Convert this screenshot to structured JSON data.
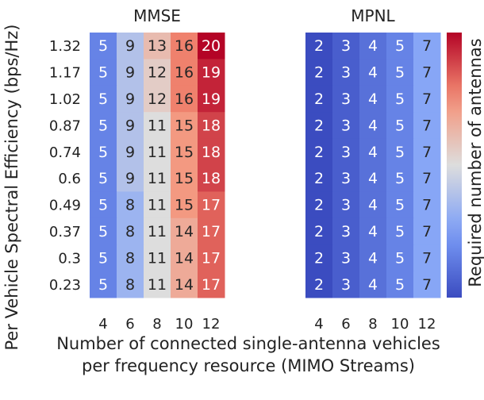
{
  "chart_data": {
    "type": "heatmap",
    "ylabel": "Per Vehicle Spectral Efficiency (bps/Hz)",
    "xlabel_line1": "Number of connected single-antenna vehicles",
    "xlabel_line2": "per frequency resource (MIMO Streams)",
    "colorbar_label": "Required number of antennas",
    "colormap": "coolwarm",
    "color_range": [
      2,
      20
    ],
    "y_ticks": [
      "1.32",
      "1.17",
      "1.02",
      "0.87",
      "0.74",
      "0.6",
      "0.49",
      "0.37",
      "0.3",
      "0.23"
    ],
    "panels": [
      {
        "title": "MMSE",
        "x_ticks": [
          "4",
          "6",
          "8",
          "10",
          "12"
        ],
        "values": [
          [
            5,
            9,
            13,
            16,
            20
          ],
          [
            5,
            9,
            12,
            16,
            19
          ],
          [
            5,
            9,
            12,
            16,
            19
          ],
          [
            5,
            9,
            11,
            15,
            18
          ],
          [
            5,
            9,
            11,
            15,
            18
          ],
          [
            5,
            9,
            11,
            15,
            18
          ],
          [
            5,
            8,
            11,
            15,
            17
          ],
          [
            5,
            8,
            11,
            14,
            17
          ],
          [
            5,
            8,
            11,
            14,
            17
          ],
          [
            5,
            8,
            11,
            14,
            17
          ]
        ]
      },
      {
        "title": "MPNL",
        "x_ticks": [
          "4",
          "6",
          "8",
          "10",
          "12"
        ],
        "values": [
          [
            2,
            3,
            4,
            5,
            7
          ],
          [
            2,
            3,
            4,
            5,
            7
          ],
          [
            2,
            3,
            4,
            5,
            7
          ],
          [
            2,
            3,
            4,
            5,
            7
          ],
          [
            2,
            3,
            4,
            5,
            7
          ],
          [
            2,
            3,
            4,
            5,
            7
          ],
          [
            2,
            3,
            4,
            5,
            7
          ],
          [
            2,
            3,
            4,
            5,
            7
          ],
          [
            2,
            3,
            4,
            5,
            7
          ],
          [
            2,
            3,
            4,
            5,
            7
          ]
        ]
      }
    ]
  }
}
